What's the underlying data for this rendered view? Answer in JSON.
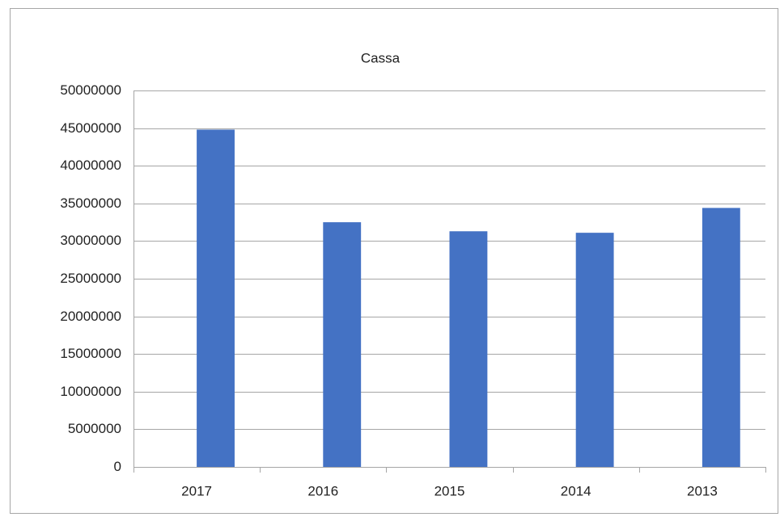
{
  "chart_data": {
    "type": "bar",
    "title": "Cassa",
    "categories": [
      "2017",
      "2016",
      "2015",
      "2014",
      "2013"
    ],
    "values": [
      44800000,
      32500000,
      31300000,
      31100000,
      34400000
    ],
    "color": "#4472c4",
    "ylim": [
      0,
      50000000
    ],
    "yticks": [
      0,
      5000000,
      10000000,
      15000000,
      20000000,
      25000000,
      30000000,
      35000000,
      40000000,
      45000000,
      50000000
    ],
    "grid": true
  }
}
